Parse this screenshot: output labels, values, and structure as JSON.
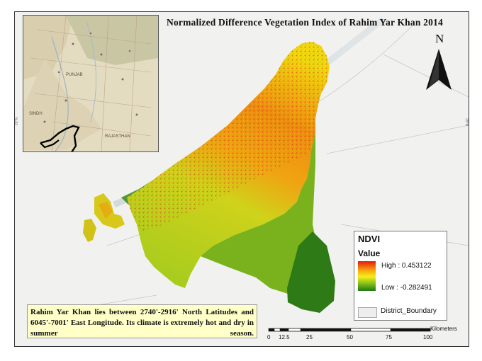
{
  "title": "Normalized Difference Vegetation Index of Rahim Yar Khan 2014",
  "north_arrow": {
    "label": "N"
  },
  "legend": {
    "title": "NDVI",
    "subtitle": "Value",
    "high": "High : 0.453122",
    "low": "Low : -0.282491",
    "boundary_label": "District_Boundary",
    "colors": {
      "high": "#e21b0f",
      "mid_high": "#f7a10d",
      "mid": "#f4ef19",
      "mid_low": "#8cc21a",
      "low": "#1d7a12"
    }
  },
  "info_text": "Rahim Yar Khan lies between 2740'-2916' North Latitudes and 6045'-7001' East Longitude. Its climate is extremely hot and dry in summer season.",
  "scale_bar": {
    "unit": "Kilometers",
    "ticks": [
      "0",
      "12.5",
      "25",
      "50",
      "75",
      "100"
    ]
  },
  "inset_map": {
    "labels": [
      "PUNJAB",
      "SINDH",
      "RAJASTHAN"
    ]
  }
}
